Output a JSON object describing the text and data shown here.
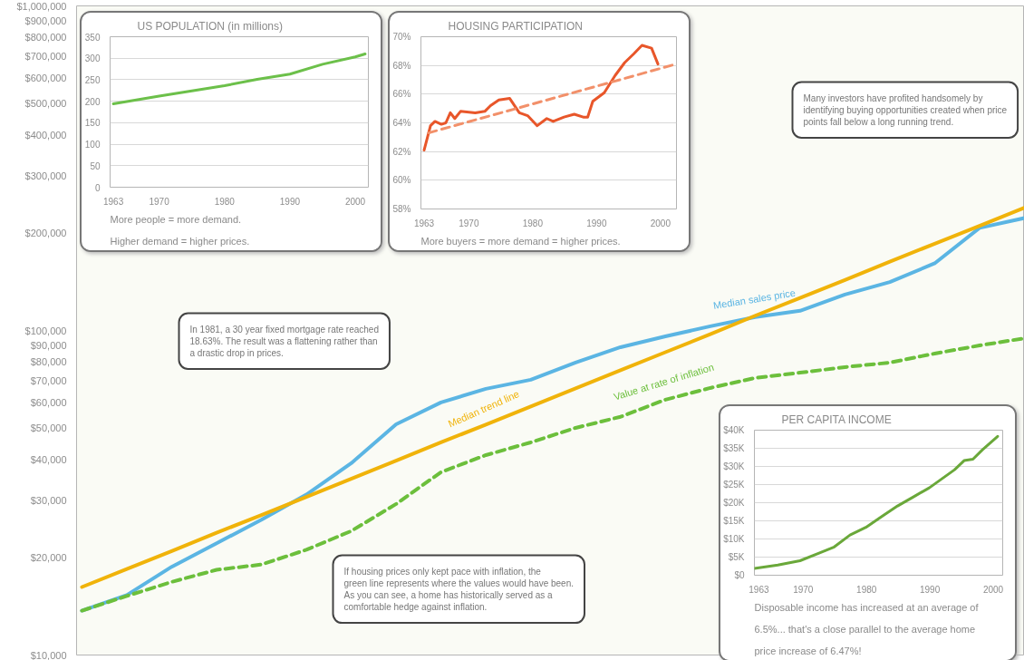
{
  "chart_data": [
    {
      "type": "line",
      "categories": [
        null,
        null,
        null,
        null,
        null,
        null,
        null,
        null,
        null,
        null,
        null,
        null,
        null,
        null,
        null,
        null,
        null,
        null,
        null,
        null,
        null,
        null
      ],
      "series": [
        {
          "name": "Median sales price",
          "color": "#5bb5e3",
          "values": [
            13700,
            15300,
            18700,
            22100,
            26100,
            31200,
            39000,
            51400,
            60000,
            66100,
            70500,
            79600,
            88800,
            95900,
            103000,
            110000,
            115000,
            129000,
            141000,
            161000,
            207000,
            222000
          ]
        },
        {
          "name": "Median trend line",
          "color": "#f0b30a",
          "values": [
            16200,
            18400,
            20900,
            23800,
            27000,
            30700,
            34900,
            39700,
            45200,
            51300,
            58300,
            66300,
            75400,
            85700,
            97400,
            111000,
            126000,
            143000,
            163000,
            185000,
            210000,
            239000
          ]
        },
        {
          "name": "Value at rate of inflation",
          "color": "#6cbf3c",
          "line_style": "dashed",
          "values": [
            13700,
            15200,
            16800,
            18300,
            19000,
            21100,
            24100,
            29200,
            36600,
            41300,
            45200,
            50100,
            54200,
            61200,
            66500,
            71400,
            74100,
            77100,
            79600,
            84900,
            89900,
            94600
          ]
        }
      ],
      "log": true,
      "ylim": [
        10000,
        1000000
      ],
      "yticks": [
        {
          "value": 10000,
          "label": "$10,000"
        },
        {
          "value": 20000,
          "label": "$20,000"
        },
        {
          "value": 30000,
          "label": "$30,000"
        },
        {
          "value": 40000,
          "label": "$40,000"
        },
        {
          "value": 50000,
          "label": "$50,000"
        },
        {
          "value": 60000,
          "label": "$60,000"
        },
        {
          "value": 70000,
          "label": "$70,000"
        },
        {
          "value": 80000,
          "label": "$80,000"
        },
        {
          "value": 90000,
          "label": "$90,000"
        },
        {
          "value": 100000,
          "label": "$100,000"
        },
        {
          "value": 200000,
          "label": "$200,000"
        },
        {
          "value": 300000,
          "label": "$300,000"
        },
        {
          "value": 400000,
          "label": "$400,000"
        },
        {
          "value": 500000,
          "label": "$500,000"
        },
        {
          "value": 600000,
          "label": "$600,000"
        },
        {
          "value": 700000,
          "label": "$700,000"
        },
        {
          "value": 800000,
          "label": "$800,000"
        },
        {
          "value": 900000,
          "label": "$900,000"
        },
        {
          "value": 1000000,
          "label": "$1,000,000"
        }
      ],
      "tick_labels": "y",
      "annotations": [
        "In 1981, a 30 year fixed mortgage rate reached 18.63%. The result was a flattening rather than a drastic drop in prices.",
        "If housing prices only kept pace with inflation, the green line represents where the values would have been. As you can see, a home has historically served as a comfortable hedge against inflation.",
        "Many investors have profited handsomely by identifying buying opportunities created when price points fall below a long running trend."
      ]
    },
    {
      "type": "line",
      "title": "US POPULATION (in millions)",
      "series": [
        {
          "color": "#6cc04a",
          "x": [
            1963,
            1970,
            1975,
            1980,
            1985,
            1990,
            1995,
            2000,
            2001.5
          ],
          "values": [
            194,
            212,
            224,
            236,
            251,
            263,
            286,
            303,
            310
          ]
        }
      ],
      "xlim": [
        1962.5,
        2002
      ],
      "xticks": [
        1963,
        1970,
        1980,
        1990,
        2000
      ],
      "ylim": [
        0,
        350
      ],
      "yticks": [
        0,
        50,
        100,
        150,
        200,
        250,
        300,
        350
      ],
      "grid": "y",
      "annotations": [
        "More people = more demand.",
        "Higher demand = higher prices."
      ]
    },
    {
      "type": "line",
      "title": "HOUSING PARTICIPATION",
      "series": [
        {
          "color": "#e8562a",
          "x": [
            1963,
            1964,
            1964.7,
            1965.7,
            1966.4,
            1967.1,
            1967.8,
            1968.7,
            1971,
            1972.5,
            1973.4,
            1974.7,
            1976.4,
            1977.9,
            1979.2,
            1980.7,
            1982.2,
            1983.2,
            1984.9,
            1986.5,
            1987.9,
            1988.6,
            1989.4,
            1991.2,
            1992.9,
            1994.4,
            1995.8,
            1997.1,
            1998.6,
            1999.6
          ],
          "values": [
            62.1,
            63.8,
            64.1,
            63.9,
            64.0,
            64.7,
            64.3,
            64.8,
            64.7,
            64.8,
            65.2,
            65.6,
            65.7,
            64.7,
            64.5,
            63.8,
            64.3,
            64.1,
            64.4,
            64.6,
            64.4,
            64.4,
            65.5,
            66.1,
            67.3,
            68.2,
            68.8,
            69.4,
            69.2,
            68.1
          ]
        },
        {
          "color": "#f2906a",
          "type": "line",
          "line_style": "dashed",
          "x": [
            1963.7,
            2002.5
          ],
          "values": [
            63.3,
            68.1
          ]
        }
      ],
      "xlim": [
        1962.5,
        2002.5
      ],
      "xticks": [
        1963,
        1970,
        1980,
        1990,
        2000
      ],
      "ylim": [
        58,
        70
      ],
      "yticks": [
        {
          "value": 58,
          "label": "58%"
        },
        {
          "value": 60,
          "label": "60%"
        },
        {
          "value": 62,
          "label": "62%"
        },
        {
          "value": 64,
          "label": "64%"
        },
        {
          "value": 66,
          "label": "66%"
        },
        {
          "value": 68,
          "label": "68%"
        },
        {
          "value": 70,
          "label": "70%"
        }
      ],
      "grid": "y",
      "annotations": [
        "More buyers = more demand = higher prices."
      ]
    },
    {
      "type": "line",
      "title": "PER CAPITA INCOME",
      "series": [
        {
          "color": "#6aa83a",
          "x": [
            1962.3,
            1966,
            1969.5,
            1972.5,
            1974.9,
            1977.4,
            1979.9,
            1982.4,
            1984.9,
            1987.4,
            1989.9,
            1991.9,
            1993.9,
            1995.4,
            1996.8,
            1998.3,
            2000.7
          ],
          "values": [
            1900,
            2800,
            4000,
            6100,
            7800,
            11100,
            13200,
            16200,
            19100,
            21600,
            24100,
            26600,
            29100,
            31600,
            32000,
            34600,
            38300
          ]
        }
      ],
      "xlim": [
        1962.3,
        2001.5
      ],
      "xticks": [
        1963,
        1970,
        1980,
        1990,
        2000
      ],
      "ylim": [
        0,
        40000
      ],
      "yticks": [
        {
          "value": 0,
          "label": "$0"
        },
        {
          "value": 5000,
          "label": "$5K"
        },
        {
          "value": 10000,
          "label": "$10K"
        },
        {
          "value": 15000,
          "label": "$15K"
        },
        {
          "value": 20000,
          "label": "$20K"
        },
        {
          "value": 25000,
          "label": "$25K"
        },
        {
          "value": 30000,
          "label": "$30K"
        },
        {
          "value": 35000,
          "label": "$35K"
        },
        {
          "value": 40000,
          "label": "$40K"
        }
      ],
      "grid": "y",
      "annotations": [
        "Disposable income has increased at an average of 6.5%... that's a close parallel to the average home price increase of 6.47%!"
      ]
    }
  ]
}
